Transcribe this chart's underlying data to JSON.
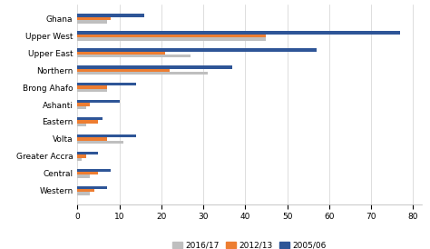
{
  "categories": [
    "Ghana",
    "Upper West",
    "Upper East",
    "Northern",
    "Brong Ahafo",
    "Ashanti",
    "Eastern",
    "Volta",
    "Greater Accra",
    "Central",
    "Western"
  ],
  "series": {
    "2016/17": [
      7,
      45,
      27,
      31,
      7,
      2,
      2,
      11,
      1,
      3,
      3
    ],
    "2012/13": [
      8,
      45,
      21,
      22,
      7,
      3,
      5,
      7,
      2,
      5,
      4
    ],
    "2005/06": [
      16,
      77,
      57,
      37,
      14,
      10,
      6,
      14,
      5,
      8,
      7
    ]
  },
  "colors": {
    "2016/17": "#bfbfbf",
    "2012/13": "#ed7d31",
    "2005/06": "#2e5597"
  },
  "xlim": [
    0,
    82
  ],
  "xticks": [
    0,
    10,
    20,
    30,
    40,
    50,
    60,
    70,
    80
  ],
  "background_color": "#ffffff",
  "bar_height": 0.18,
  "figsize": [
    4.74,
    2.74
  ],
  "dpi": 100
}
